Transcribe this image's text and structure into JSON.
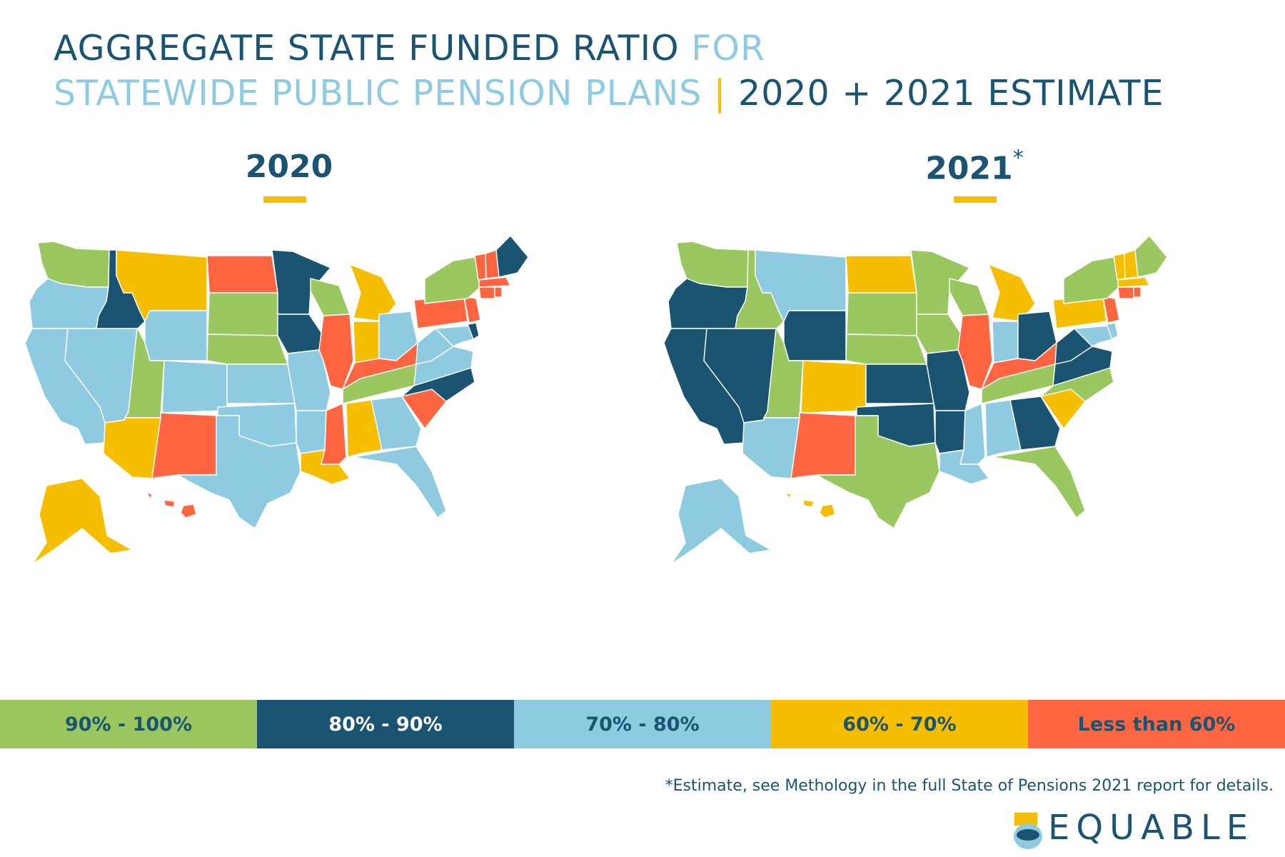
{
  "title": {
    "line1_dark": "AGGREGATE STATE FUNDED RATIO",
    "line1_light": "FOR",
    "line2_light": "STATEWIDE PUBLIC PENSION PLANS",
    "separator": "|",
    "line2_dark": "2020 + 2021 ESTIMATE"
  },
  "maps": [
    {
      "year": "2020",
      "footnote_mark": ""
    },
    {
      "year": "2021",
      "footnote_mark": "*"
    }
  ],
  "legend": [
    {
      "label": "90% - 100%",
      "color": "#9bc761",
      "text_color": "#1a5470"
    },
    {
      "label": "80% - 90%",
      "color": "#1a5470",
      "text_color": "#ffffff"
    },
    {
      "label": "70% - 80%",
      "color": "#8fcbe0",
      "text_color": "#1a5470"
    },
    {
      "label": "60% - 70%",
      "color": "#f6be00",
      "text_color": "#1a5470"
    },
    {
      "label": "Less than 60%",
      "color": "#ff6541",
      "text_color": "#1a5470"
    }
  ],
  "footnote": "*Estimate, see Methology in the full State of Pensions 2021 report for details.",
  "logo": {
    "text": "EQUABLE",
    "icon": "equable-logo-icon"
  },
  "categories": {
    "g": "90% - 100%",
    "n": "80% - 90%",
    "b": "70% - 80%",
    "y": "60% - 70%",
    "r": "Less than 60%"
  },
  "states_2020": {
    "WA": "g",
    "OR": "b",
    "CA": "b",
    "ID": "n",
    "NV": "b",
    "MT": "y",
    "WY": "b",
    "UT": "g",
    "AZ": "y",
    "CO": "b",
    "NM": "r",
    "ND": "r",
    "SD": "g",
    "NE": "g",
    "KS": "b",
    "OK": "b",
    "TX": "b",
    "MN": "n",
    "IA": "n",
    "MO": "b",
    "AR": "b",
    "LA": "y",
    "WI": "g",
    "IL": "r",
    "MS": "r",
    "MI": "y",
    "IN": "y",
    "OH": "b",
    "KY": "r",
    "TN": "g",
    "AL": "y",
    "GA": "b",
    "FL": "b",
    "SC": "r",
    "NC": "n",
    "VA": "b",
    "WV": "b",
    "PA": "r",
    "NY": "g",
    "ME": "n",
    "VT": "r",
    "NH": "r",
    "MA": "r",
    "CT": "r",
    "RI": "r",
    "NJ": "r",
    "DE": "n",
    "MD": "b",
    "AK": "y",
    "HI": "r"
  },
  "states_2021": {
    "WA": "g",
    "OR": "n",
    "CA": "n",
    "ID": "g",
    "NV": "n",
    "MT": "b",
    "WY": "n",
    "UT": "g",
    "AZ": "b",
    "CO": "y",
    "NM": "r",
    "ND": "y",
    "SD": "g",
    "NE": "g",
    "KS": "n",
    "OK": "n",
    "TX": "g",
    "MN": "g",
    "IA": "g",
    "MO": "n",
    "AR": "n",
    "LA": "b",
    "WI": "g",
    "IL": "r",
    "MS": "b",
    "MI": "y",
    "IN": "b",
    "OH": "n",
    "KY": "r",
    "TN": "g",
    "AL": "b",
    "GA": "n",
    "FL": "g",
    "SC": "y",
    "NC": "g",
    "VA": "n",
    "WV": "n",
    "PA": "y",
    "NY": "g",
    "ME": "g",
    "VT": "y",
    "NH": "y",
    "MA": "y",
    "CT": "r",
    "RI": "r",
    "NJ": "r",
    "DE": "b",
    "MD": "b",
    "AK": "b",
    "HI": "y"
  }
}
